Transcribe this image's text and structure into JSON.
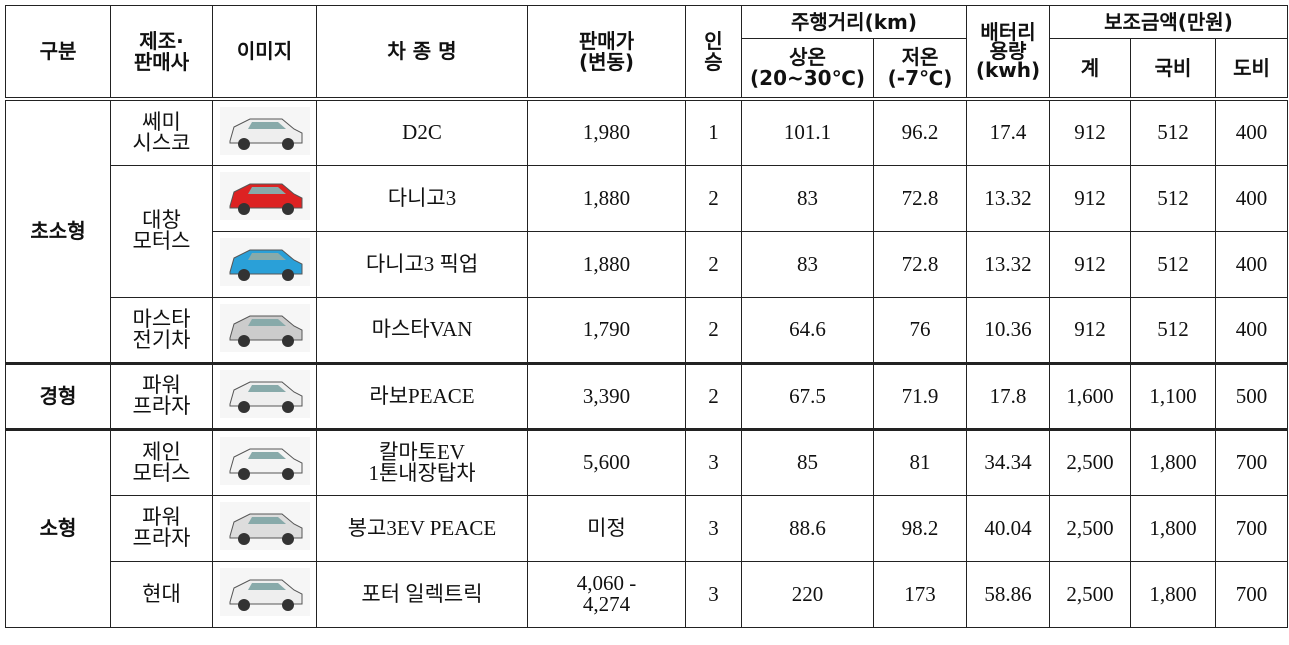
{
  "table": {
    "header": {
      "category": "구분",
      "maker": "제조·\n판매사",
      "image": "이미지",
      "model": "차 종 명",
      "price": "판매가\n(변동)",
      "seats": "인\n승",
      "range": "주행거리(km)",
      "range_room": "상온\n(20~30℃)",
      "range_cold": "저온\n(-7℃)",
      "battery": "배터리\n용량\n(kwh)",
      "subsidy": "보조금액(만원)",
      "subsidy_total": "계",
      "subsidy_national": "국비",
      "subsidy_provincial": "도비"
    },
    "groups": [
      {
        "label": "초소형",
        "makers": [
          {
            "name": "쎄미\n시스코",
            "models": [
              {
                "name": "D2C",
                "price": "1,980",
                "seats": "1",
                "range_room": "101.1",
                "range_cold": "96.2",
                "battery": "17.4",
                "total": "912",
                "national": "512",
                "provincial": "400"
              }
            ]
          },
          {
            "name": "대창\n모터스",
            "models": [
              {
                "name": "다니고3",
                "price": "1,880",
                "seats": "2",
                "range_room": "83",
                "range_cold": "72.8",
                "battery": "13.32",
                "total": "912",
                "national": "512",
                "provincial": "400"
              },
              {
                "name": "다니고3 픽업",
                "price": "1,880",
                "seats": "2",
                "range_room": "83",
                "range_cold": "72.8",
                "battery": "13.32",
                "total": "912",
                "national": "512",
                "provincial": "400"
              }
            ]
          },
          {
            "name": "마스타\n전기차",
            "models": [
              {
                "name": "마스타VAN",
                "price": "1,790",
                "seats": "2",
                "range_room": "64.6",
                "range_cold": "76",
                "battery": "10.36",
                "total": "912",
                "national": "512",
                "provincial": "400"
              }
            ]
          }
        ]
      },
      {
        "label": "경형",
        "makers": [
          {
            "name": "파워\n프라자",
            "models": [
              {
                "name": "라보PEACE",
                "price": "3,390",
                "seats": "2",
                "range_room": "67.5",
                "range_cold": "71.9",
                "battery": "17.8",
                "total": "1,600",
                "national": "1,100",
                "provincial": "500"
              }
            ]
          }
        ]
      },
      {
        "label": "소형",
        "makers": [
          {
            "name": "제인\n모터스",
            "models": [
              {
                "name": "칼마토EV\n1톤내장탑차",
                "price": "5,600",
                "seats": "3",
                "range_room": "85",
                "range_cold": "81",
                "battery": "34.34",
                "total": "2,500",
                "national": "1,800",
                "provincial": "700"
              }
            ]
          },
          {
            "name": "파워\n프라자",
            "models": [
              {
                "name": "봉고3EV PEACE",
                "price": "미정",
                "seats": "3",
                "range_room": "88.6",
                "range_cold": "98.2",
                "battery": "40.04",
                "total": "2,500",
                "national": "1,800",
                "provincial": "700"
              }
            ]
          },
          {
            "name": "현대",
            "models": [
              {
                "name": "포터 일렉트릭",
                "price": "4,060 -\n4,274",
                "seats": "3",
                "range_room": "220",
                "range_cold": "173",
                "battery": "58.86",
                "total": "2,500",
                "national": "1,800",
                "provincial": "700"
              }
            ]
          }
        ]
      }
    ]
  }
}
